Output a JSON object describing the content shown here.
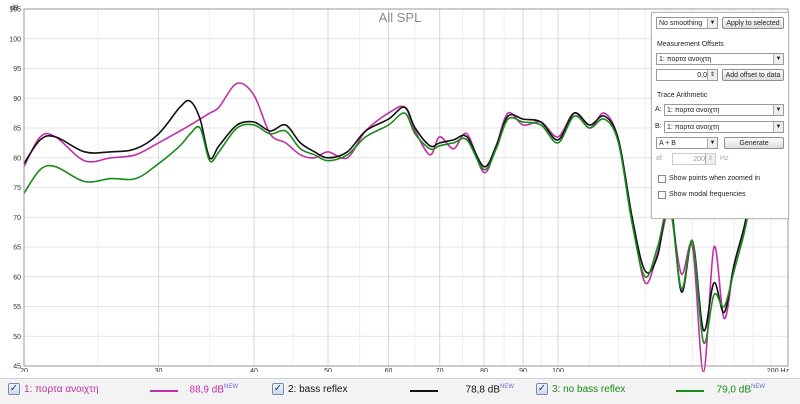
{
  "chart_data": {
    "type": "line",
    "title": "All SPL",
    "y_unit": "dB",
    "x_unit": "Hz",
    "xscale": "log",
    "xlim": [
      20,
      200
    ],
    "ylim": [
      45,
      105
    ],
    "x_ticks": [
      20,
      30,
      40,
      50,
      60,
      70,
      80,
      90,
      100,
      200
    ],
    "x_tick_labels": [
      "20",
      "30",
      "40",
      "50",
      "60",
      "70",
      "80",
      "90",
      "100",
      "200 Hz"
    ],
    "y_ticks": [
      45,
      50,
      55,
      60,
      65,
      70,
      75,
      80,
      85,
      90,
      95,
      100,
      105
    ],
    "grid": true,
    "x": [
      20,
      21,
      22,
      24,
      26,
      28,
      30,
      32,
      33,
      34,
      35,
      36,
      38,
      40,
      42,
      44,
      46,
      48,
      50,
      53,
      56,
      60,
      63,
      65,
      68,
      70,
      73,
      76,
      80,
      83,
      86,
      90,
      95,
      100,
      105,
      110,
      115,
      120,
      125,
      130,
      135,
      140,
      145,
      150,
      155,
      160,
      165,
      170,
      175,
      180,
      185,
      190,
      195,
      200
    ],
    "series": [
      {
        "name": "1: πορτα ανοιχτη",
        "color": "#c030a8",
        "values": [
          78.5,
          83.5,
          83.5,
          79.5,
          80,
          80.5,
          82.5,
          84.5,
          85.5,
          86.5,
          87.5,
          88.5,
          92.5,
          90.5,
          84,
          82.5,
          80.5,
          80,
          81,
          80,
          84.5,
          87.5,
          88.5,
          84.5,
          80.5,
          83.5,
          81.5,
          84,
          77.5,
          82,
          87.5,
          85.5,
          86,
          83.5,
          87.5,
          85,
          87.5,
          83,
          70,
          59,
          64,
          71,
          60.5,
          65,
          44,
          65,
          53,
          62,
          68,
          75,
          76,
          74,
          75,
          71
        ]
      },
      {
        "name": "2: bass reflex",
        "color": "#111111",
        "values": [
          79,
          83,
          83.5,
          81,
          81,
          81.5,
          84,
          88.5,
          89.5,
          86.5,
          80,
          82,
          85.5,
          86,
          84.5,
          85.5,
          82.5,
          81,
          80,
          81,
          84.5,
          86.5,
          88.5,
          85,
          82,
          82.5,
          83,
          83.5,
          78.5,
          82,
          87,
          86.5,
          86,
          83,
          87.5,
          85.5,
          87,
          83,
          70,
          61,
          63.5,
          73,
          57.5,
          66,
          51,
          59,
          54,
          62,
          68,
          75,
          76,
          74,
          75,
          71
        ]
      },
      {
        "name": "3: no bass reflex",
        "color": "#1a8a1a",
        "values": [
          74,
          78,
          78.5,
          76,
          76.5,
          76.5,
          79,
          82,
          84,
          85,
          79.5,
          81,
          85,
          85.5,
          84,
          84.5,
          81.5,
          80.5,
          79.5,
          80.5,
          83.5,
          85.5,
          87.5,
          84,
          81.5,
          82,
          82.5,
          83,
          78,
          81.5,
          86.5,
          86,
          85.5,
          82.5,
          87,
          85,
          86.5,
          82.5,
          69,
          60,
          65,
          72,
          58,
          66,
          49,
          57,
          55,
          61,
          67,
          74,
          75,
          73,
          74,
          70.5
        ]
      }
    ]
  },
  "panel": {
    "smoothing_value": "No smoothing",
    "apply_button": "Apply to selected",
    "offsets_heading": "Measurement Offsets",
    "offset_measurement": "1: πορτα ανοιχτη",
    "offset_value": "0,0",
    "add_offset_button": "Add offset to data",
    "arith_heading": "Trace Arithmetic",
    "a_label": "A:",
    "a_value": "1: πορτα ανοιχτη",
    "b_label": "B:",
    "b_value": "1: πορτα ανοιχτη",
    "op_value": "A + B",
    "generate_button": "Generate",
    "af_label": "af:",
    "af_value": "200",
    "af_unit": "Hz",
    "show_points_label": "Show points when zoomed in",
    "show_modal_label": "Show modal frequencies"
  },
  "legend": [
    {
      "name": "1: πορτα ανοιχτη",
      "value": "88,9 dB",
      "badge": "NEW",
      "color": "#c030a8"
    },
    {
      "name": "2: bass reflex",
      "value": "78,8 dB",
      "badge": "NEW",
      "color": "#111111"
    },
    {
      "name": "3: no bass reflex",
      "value": "79,0 dB",
      "badge": "NEW",
      "color": "#1a8a1a"
    }
  ],
  "legend_check_glyph": "✓"
}
